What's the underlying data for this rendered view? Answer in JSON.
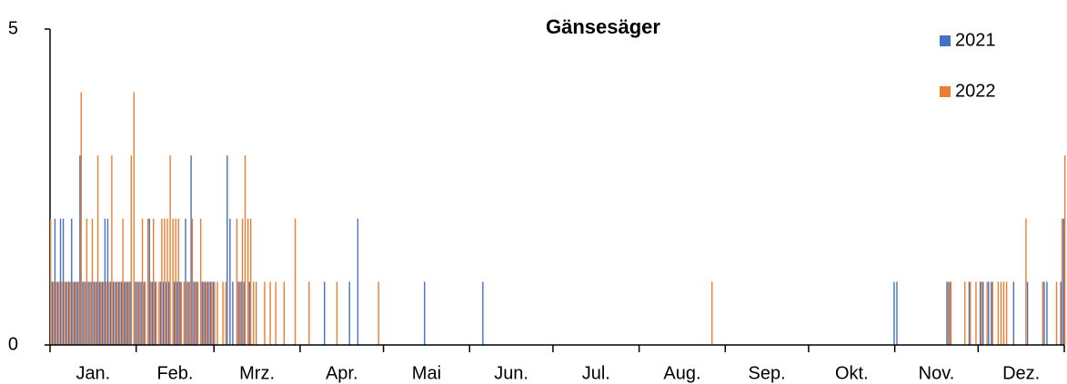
{
  "chart_data": {
    "type": "bar",
    "title": "Gänsesäger",
    "categories": [
      "Jan.",
      "Feb.",
      "Mrz.",
      "Apr.",
      "Mai",
      "Jun.",
      "Jul.",
      "Aug.",
      "Sep.",
      "Okt.",
      "Nov.",
      "Dez."
    ],
    "xlim": [
      0,
      365
    ],
    "xticks": [
      0,
      31,
      59,
      90,
      120,
      151,
      181,
      212,
      243,
      273,
      304,
      334,
      365
    ],
    "ylim": [
      0,
      5
    ],
    "yticks": [
      0,
      5
    ],
    "grid": false,
    "legend": "upper right",
    "series": [
      {
        "name": "2021",
        "color": "#4472c4",
        "x": [
          1,
          2,
          3,
          4,
          5,
          6,
          7,
          8,
          9,
          10,
          11,
          12,
          13,
          14,
          15,
          16,
          17,
          18,
          19,
          20,
          21,
          22,
          23,
          24,
          25,
          26,
          27,
          28,
          29,
          31,
          32,
          33,
          34,
          36,
          37,
          38,
          40,
          41,
          42,
          43,
          45,
          46,
          47,
          49,
          50,
          51,
          52,
          53,
          55,
          56,
          57,
          58,
          59,
          64,
          65,
          66,
          68,
          69,
          70,
          72,
          99,
          108,
          111,
          135,
          156,
          304,
          305,
          323,
          324,
          331,
          335,
          336,
          338,
          339,
          347,
          352,
          358,
          359,
          364,
          365
        ],
        "values": [
          1,
          2,
          1,
          2,
          2,
          1,
          1,
          2,
          1,
          1,
          3,
          1,
          1,
          1,
          1,
          1,
          1,
          1,
          1,
          2,
          2,
          1,
          1,
          1,
          1,
          1,
          1,
          1,
          1,
          1,
          1,
          1,
          1,
          2,
          1,
          1,
          1,
          1,
          1,
          1,
          1,
          1,
          1,
          2,
          1,
          3,
          1,
          1,
          1,
          1,
          1,
          1,
          1,
          3,
          2,
          1,
          1,
          1,
          1,
          1,
          1,
          1,
          2,
          1,
          1,
          1,
          1,
          1,
          1,
          1,
          1,
          1,
          1,
          1,
          1,
          1,
          1,
          1,
          1,
          2
        ]
      },
      {
        "name": "2022",
        "color": "#ed7d31",
        "x": [
          0,
          1,
          2,
          3,
          4,
          5,
          6,
          7,
          8,
          9,
          10,
          11,
          12,
          13,
          14,
          15,
          16,
          17,
          18,
          19,
          20,
          21,
          22,
          23,
          24,
          25,
          26,
          27,
          28,
          29,
          30,
          31,
          32,
          33,
          34,
          35,
          36,
          37,
          38,
          39,
          40,
          41,
          42,
          43,
          44,
          45,
          46,
          47,
          48,
          49,
          50,
          51,
          52,
          53,
          54,
          55,
          56,
          57,
          58,
          59,
          60,
          62,
          63,
          67,
          68,
          69,
          70,
          71,
          72,
          73,
          74,
          77,
          79,
          81,
          84,
          88,
          93,
          103,
          118,
          238,
          323,
          324,
          329,
          331,
          333,
          335,
          337,
          339,
          341,
          342,
          343,
          344,
          351,
          357,
          362,
          364,
          365
        ],
        "values": [
          2,
          1,
          1,
          1,
          1,
          1,
          1,
          1,
          1,
          1,
          1,
          4,
          1,
          2,
          1,
          2,
          1,
          3,
          1,
          1,
          1,
          1,
          3,
          1,
          1,
          1,
          2,
          1,
          1,
          3,
          4,
          1,
          1,
          2,
          1,
          2,
          1,
          2,
          1,
          1,
          2,
          2,
          2,
          3,
          2,
          2,
          2,
          1,
          1,
          1,
          1,
          2,
          1,
          1,
          2,
          1,
          1,
          1,
          1,
          1,
          1,
          1,
          1,
          2,
          1,
          2,
          3,
          2,
          2,
          1,
          1,
          1,
          1,
          1,
          1,
          2,
          1,
          1,
          1,
          1,
          1,
          1,
          1,
          1,
          1,
          1,
          1,
          1,
          1,
          1,
          1,
          1,
          2,
          1,
          1,
          2,
          3
        ]
      }
    ]
  }
}
